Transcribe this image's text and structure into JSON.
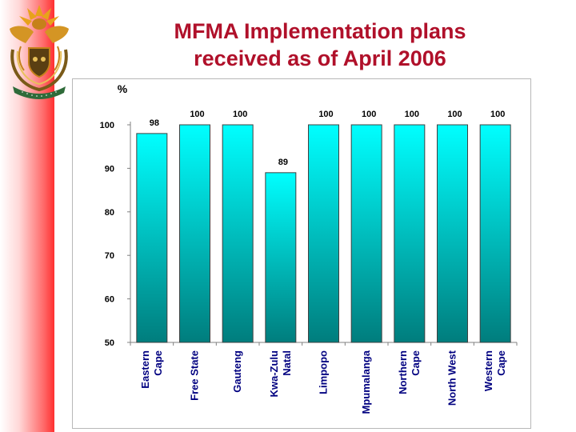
{
  "slide": {
    "title_line1": "MFMA Implementation plans",
    "title_line2": "received as of April 2006"
  },
  "chart_data": {
    "type": "bar",
    "title": "MFMA Implementation plans received as of April 2006",
    "ylabel": "%",
    "xlabel": "",
    "ylim": [
      50,
      100
    ],
    "yticks": [
      50,
      60,
      70,
      80,
      90,
      100
    ],
    "grid": false,
    "categories": [
      [
        "Eastern",
        "Cape"
      ],
      [
        "Free State"
      ],
      [
        "Gauteng"
      ],
      [
        "Kwa-Zulu",
        "Natal"
      ],
      [
        "Limpopo"
      ],
      [
        "Mpumalanga"
      ],
      [
        "Northern",
        "Cape"
      ],
      [
        "North West"
      ],
      [
        "Western",
        "Cape"
      ]
    ],
    "values": [
      98,
      100,
      100,
      89,
      100,
      100,
      100,
      100,
      100
    ],
    "data_labels": [
      "98",
      "100",
      "100",
      "89",
      "100",
      "100",
      "100",
      "100",
      "100"
    ],
    "bar_color_top": "#00ffff",
    "bar_color_bottom": "#007d7d",
    "title_color": "#b0102a"
  }
}
